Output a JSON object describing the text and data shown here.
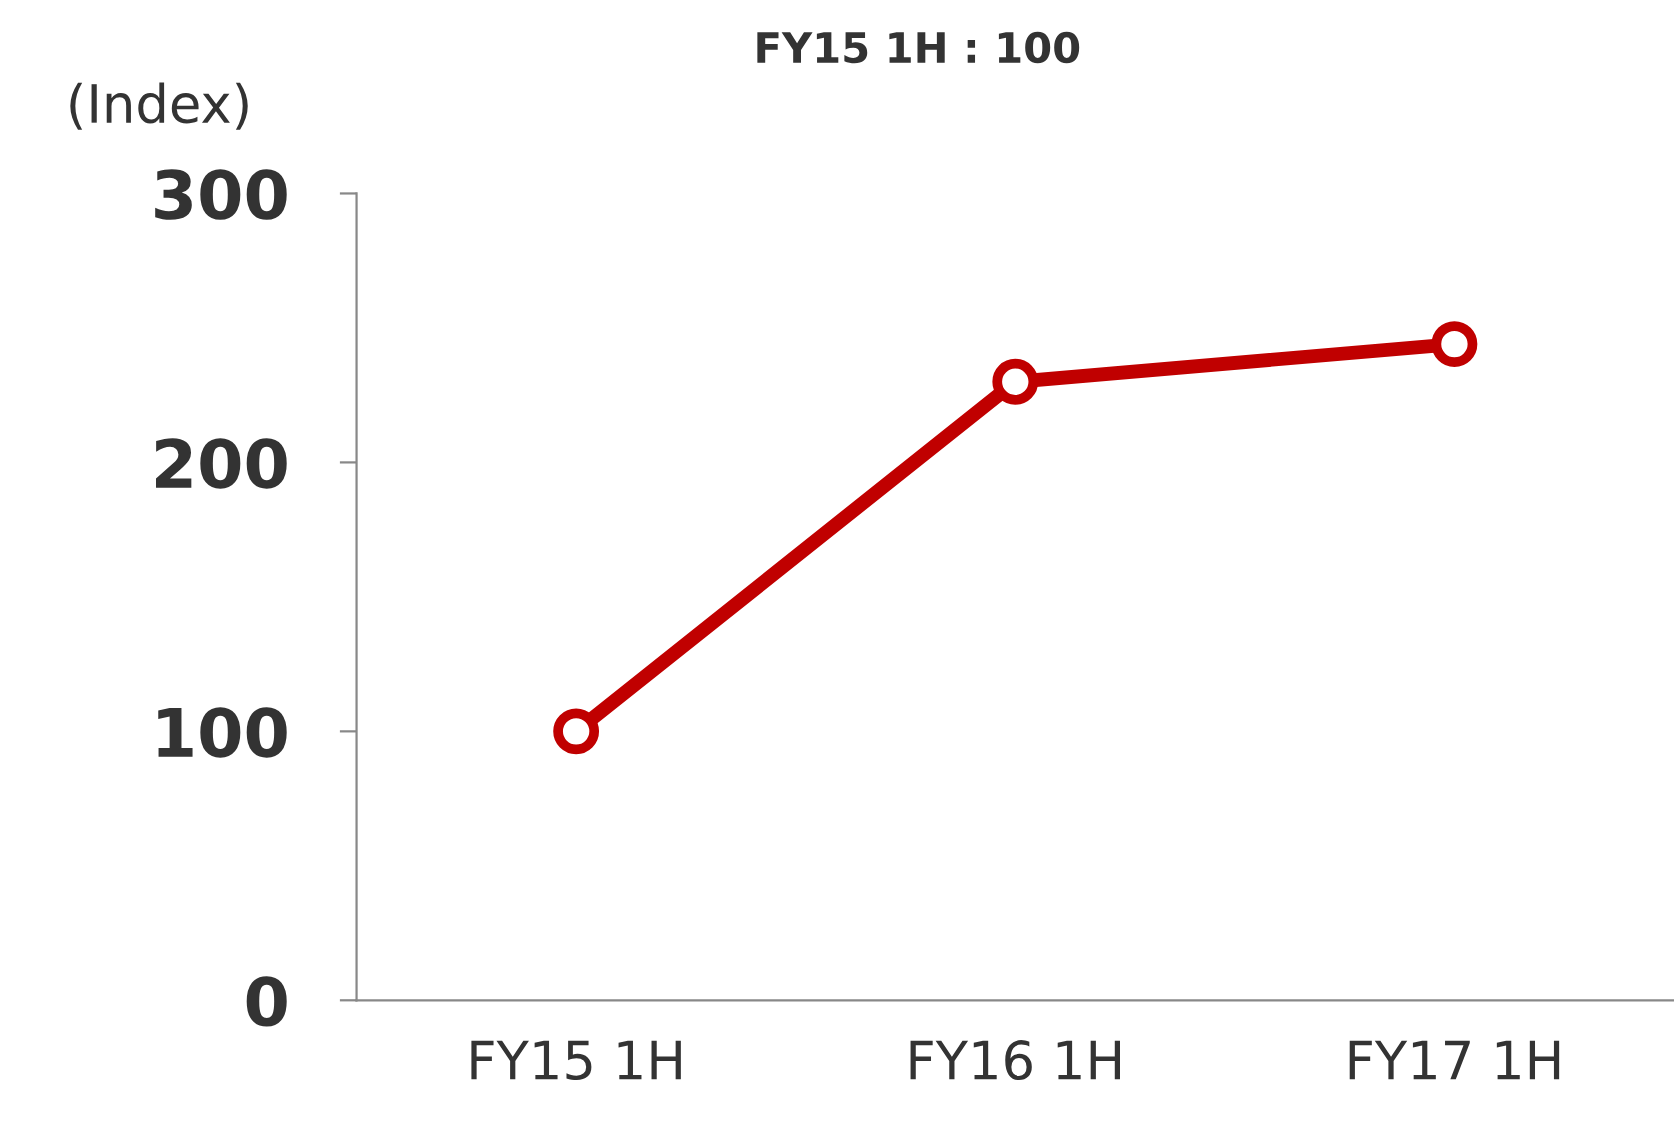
{
  "chart_data": {
    "type": "line",
    "subtitle": "FY15 1H : 100",
    "annotations": [
      "(Index)"
    ],
    "categories": [
      "FY15 1H",
      "FY16 1H",
      "FY17 1H"
    ],
    "series": [
      {
        "color": "#c00000",
        "values": [
          100,
          230,
          244
        ]
      }
    ],
    "ylim": [
      0,
      300
    ],
    "yticks": [
      0,
      100,
      200,
      300
    ],
    "marker": "circle",
    "grid": false
  }
}
